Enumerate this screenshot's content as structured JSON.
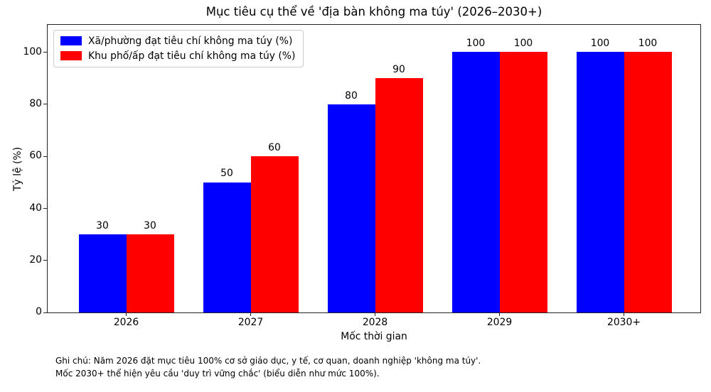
{
  "figure": {
    "note_line1": "Ghi chú: Năm 2026 đặt mục tiêu 100% cơ sở giáo dục, y tế, cơ quan, doanh nghiệp 'không ma túy'.",
    "note_line2": "Mốc 2030+ thể hiện yêu cầu 'duy trì vững chắc' (biểu diễn như mức 100%)."
  },
  "chart_data": {
    "type": "bar",
    "title": "Mục tiêu cụ thể về 'địa bàn không ma túy' (2026–2030+)",
    "xlabel": "Mốc thời gian",
    "ylabel": "Tỷ lệ (%)",
    "categories": [
      "2026",
      "2027",
      "2028",
      "2029",
      "2030+"
    ],
    "series": [
      {
        "name": "Xã/phường đạt tiêu chí không ma túy (%)",
        "color": "#0000ff",
        "values": [
          30,
          50,
          80,
          100,
          100
        ]
      },
      {
        "name": "Khu phố/ấp đạt tiêu chí không ma túy (%)",
        "color": "#ff0000",
        "values": [
          30,
          60,
          90,
          100,
          100
        ]
      }
    ],
    "yticks": [
      0,
      20,
      40,
      60,
      80,
      100
    ],
    "ylim": [
      0,
      110.5
    ],
    "grid": false,
    "legend_position": "upper left",
    "bar_labels": true,
    "background": "#ffffff"
  }
}
